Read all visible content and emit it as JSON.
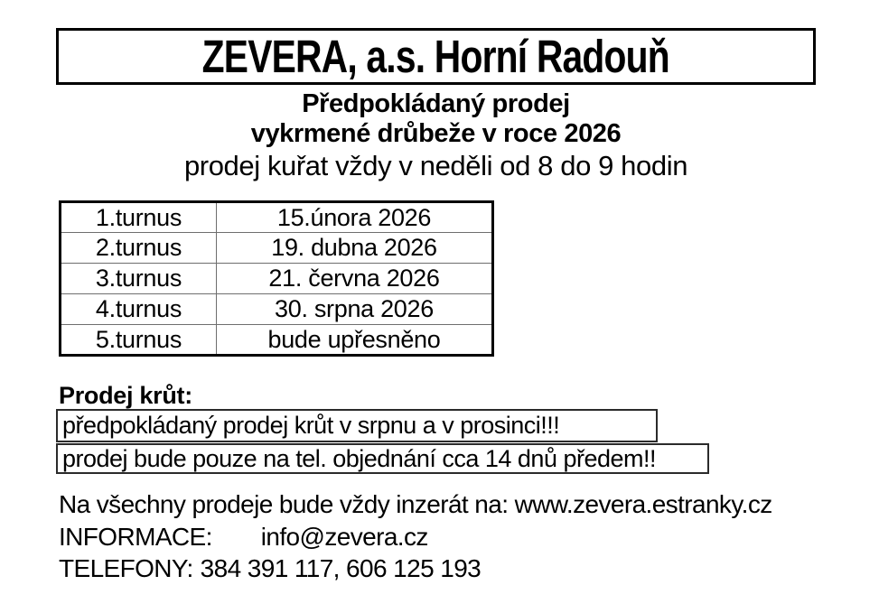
{
  "header": {
    "title": "ZEVERA, a.s. Horní Radouň"
  },
  "subtitle": {
    "line1": "Předpokládaný prodej",
    "line2": "vykrmené drůbeže v roce 2026",
    "line3": "prodej kuřat vždy v neděli od 8 do 9 hodin"
  },
  "schedule_table": {
    "rows": [
      {
        "label": "1.turnus",
        "date": "15.února 2026"
      },
      {
        "label": "2.turnus",
        "date": "19. dubna 2026"
      },
      {
        "label": "3.turnus",
        "date": "21. června 2026"
      },
      {
        "label": "4.turnus",
        "date": "30. srpna 2026"
      },
      {
        "label": "5.turnus",
        "date": "bude upřesněno"
      }
    ]
  },
  "turkey_section": {
    "heading": "Prodej krůt:",
    "note1": "předpokládaný prodej krůt v srpnu a v prosinci!!!",
    "note2": "prodej bude pouze na tel. objednání cca 14 dnů předem!!"
  },
  "footer": {
    "ad_line": "Na všechny prodeje bude vždy inzerát na: www.zevera.estranky.cz",
    "info_label": "INFORMACE:",
    "info_value": "info@zevera.cz",
    "phones_label": "TELEFONY:",
    "phones_value": "384 391 117, 606 125 193"
  },
  "colors": {
    "background": "#ffffff",
    "text": "#000000",
    "table_inner_rule": "#6e6e6e",
    "border": "#000000"
  }
}
